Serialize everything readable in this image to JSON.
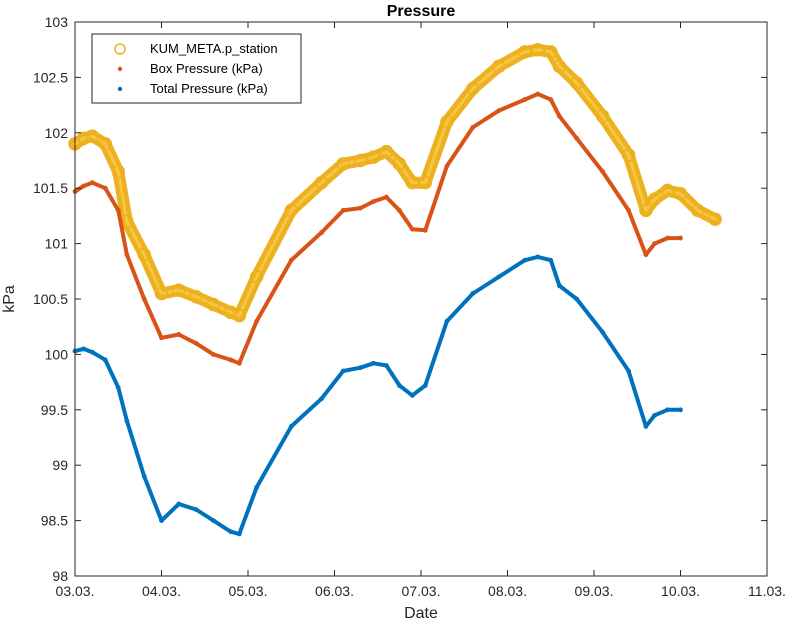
{
  "chart_data": {
    "type": "line",
    "title": "Pressure",
    "xlabel": "Date",
    "ylabel": "kPa",
    "xlim": [
      0,
      8
    ],
    "ylim": [
      98,
      103
    ],
    "x_ticks": [
      {
        "value": 0,
        "label": "03.03."
      },
      {
        "value": 1,
        "label": "04.03."
      },
      {
        "value": 2,
        "label": "05.03."
      },
      {
        "value": 3,
        "label": "06.03."
      },
      {
        "value": 4,
        "label": "07.03."
      },
      {
        "value": 5,
        "label": "08.03."
      },
      {
        "value": 6,
        "label": "09.03."
      },
      {
        "value": 7,
        "label": "10.03."
      },
      {
        "value": 8,
        "label": "11.03."
      }
    ],
    "y_ticks": [
      {
        "value": 98,
        "label": "98"
      },
      {
        "value": 98.5,
        "label": "98.5"
      },
      {
        "value": 99,
        "label": "99"
      },
      {
        "value": 99.5,
        "label": "99.5"
      },
      {
        "value": 100,
        "label": "100"
      },
      {
        "value": 100.5,
        "label": "100.5"
      },
      {
        "value": 101,
        "label": "101"
      },
      {
        "value": 101.5,
        "label": "101.5"
      },
      {
        "value": 102,
        "label": "102"
      },
      {
        "value": 102.5,
        "label": "102.5"
      },
      {
        "value": 103,
        "label": "103"
      }
    ],
    "grid": false,
    "legend_position": "top-left",
    "series": [
      {
        "name": "KUM_META.p_station",
        "marker": "circle",
        "color": "#EDB120",
        "x": [
          0,
          0.1,
          0.2,
          0.35,
          0.5,
          0.6,
          0.8,
          1.0,
          1.2,
          1.4,
          1.6,
          1.8,
          1.9,
          2.1,
          2.5,
          2.85,
          3.1,
          3.3,
          3.45,
          3.6,
          3.75,
          3.9,
          4.05,
          4.3,
          4.6,
          4.9,
          5.2,
          5.35,
          5.5,
          5.6,
          5.8,
          6.1,
          6.4,
          6.6,
          6.7,
          6.85,
          7.0,
          7.2,
          7.4
        ],
        "values": [
          101.9,
          101.95,
          101.97,
          101.9,
          101.65,
          101.2,
          100.9,
          100.55,
          100.58,
          100.52,
          100.45,
          100.38,
          100.35,
          100.7,
          101.3,
          101.55,
          101.72,
          101.75,
          101.78,
          101.83,
          101.72,
          101.55,
          101.55,
          102.1,
          102.4,
          102.6,
          102.73,
          102.75,
          102.73,
          102.6,
          102.45,
          102.15,
          101.8,
          101.3,
          101.4,
          101.48,
          101.45,
          101.3,
          101.22
        ]
      },
      {
        "name": "Box Pressure (kPa)",
        "marker": "dot",
        "color": "#D95319",
        "x": [
          0,
          0.1,
          0.2,
          0.35,
          0.5,
          0.6,
          0.8,
          1.0,
          1.2,
          1.4,
          1.6,
          1.8,
          1.9,
          2.1,
          2.5,
          2.85,
          3.1,
          3.3,
          3.45,
          3.6,
          3.75,
          3.9,
          4.05,
          4.3,
          4.6,
          4.9,
          5.2,
          5.35,
          5.5,
          5.6,
          5.8,
          6.1,
          6.4,
          6.6,
          6.7,
          6.85,
          7.0
        ],
        "values": [
          101.47,
          101.52,
          101.55,
          101.5,
          101.3,
          100.9,
          100.5,
          100.15,
          100.18,
          100.1,
          100.0,
          99.95,
          99.92,
          100.3,
          100.85,
          101.1,
          101.3,
          101.32,
          101.38,
          101.42,
          101.3,
          101.13,
          101.12,
          101.7,
          102.05,
          102.2,
          102.3,
          102.35,
          102.3,
          102.15,
          101.95,
          101.65,
          101.3,
          100.9,
          101.0,
          101.05,
          101.05
        ]
      },
      {
        "name": "Total Pressure (kPa)",
        "marker": "dot",
        "color": "#0072BD",
        "x": [
          0,
          0.1,
          0.2,
          0.35,
          0.5,
          0.6,
          0.8,
          1.0,
          1.2,
          1.4,
          1.6,
          1.8,
          1.9,
          2.1,
          2.5,
          2.85,
          3.1,
          3.3,
          3.45,
          3.6,
          3.75,
          3.9,
          4.05,
          4.3,
          4.6,
          4.9,
          5.2,
          5.35,
          5.5,
          5.6,
          5.8,
          6.1,
          6.4,
          6.6,
          6.7,
          6.85,
          7.0
        ],
        "values": [
          100.03,
          100.05,
          100.02,
          99.95,
          99.7,
          99.4,
          98.9,
          98.5,
          98.65,
          98.6,
          98.5,
          98.4,
          98.38,
          98.8,
          99.35,
          99.6,
          99.85,
          99.88,
          99.92,
          99.9,
          99.72,
          99.63,
          99.72,
          100.3,
          100.55,
          100.7,
          100.85,
          100.88,
          100.85,
          100.62,
          100.5,
          100.2,
          99.85,
          99.35,
          99.45,
          99.5,
          99.5
        ]
      }
    ]
  }
}
